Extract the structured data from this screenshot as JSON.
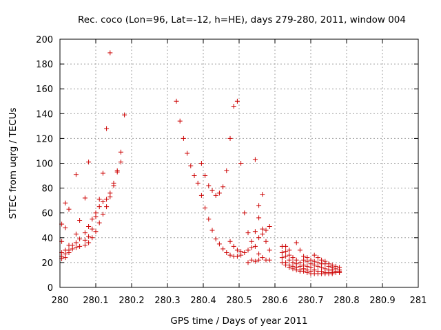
{
  "chart_data": {
    "type": "scatter",
    "title": "Rec. coco (Lon=96, Lat=-12, h=HE), days 279-280, 2011, window 004",
    "xlabel": "GPS time / Days of year 2011",
    "ylabel": "STEC from uqrg / TECUs",
    "xlim": [
      280,
      281
    ],
    "ylim": [
      0,
      200
    ],
    "xticks": [
      280,
      280.1,
      280.2,
      280.3,
      280.4,
      280.5,
      280.6,
      280.7,
      280.8,
      280.9,
      281
    ],
    "xtick_labels": [
      "280",
      "280.1",
      "280.2",
      "280.3",
      "280.4",
      "280.5",
      "280.6",
      "280.7",
      "280.8",
      "280.9",
      "281"
    ],
    "yticks": [
      0,
      20,
      40,
      60,
      80,
      100,
      120,
      140,
      160,
      180,
      200
    ],
    "ytick_labels": [
      "0",
      "20",
      "40",
      "60",
      "80",
      "100",
      "120",
      "140",
      "160",
      "180",
      "200"
    ],
    "grid": true,
    "marker": "+",
    "color": "#cc0000",
    "points": [
      [
        280.005,
        51
      ],
      [
        280.005,
        37
      ],
      [
        280.005,
        28
      ],
      [
        280.005,
        25
      ],
      [
        280.005,
        23
      ],
      [
        280.015,
        68
      ],
      [
        280.015,
        48
      ],
      [
        280.015,
        30
      ],
      [
        280.015,
        27
      ],
      [
        280.015,
        24
      ],
      [
        280.025,
        63
      ],
      [
        280.025,
        34
      ],
      [
        280.025,
        30
      ],
      [
        280.025,
        28
      ],
      [
        280.035,
        34
      ],
      [
        280.035,
        31
      ],
      [
        280.045,
        91
      ],
      [
        280.045,
        43
      ],
      [
        280.045,
        36
      ],
      [
        280.045,
        32
      ],
      [
        280.055,
        54
      ],
      [
        280.055,
        39
      ],
      [
        280.055,
        33
      ],
      [
        280.07,
        72
      ],
      [
        280.07,
        44
      ],
      [
        280.07,
        38
      ],
      [
        280.07,
        34
      ],
      [
        280.08,
        101
      ],
      [
        280.08,
        49
      ],
      [
        280.08,
        41
      ],
      [
        280.08,
        36
      ],
      [
        280.09,
        55
      ],
      [
        280.09,
        47
      ],
      [
        280.09,
        40
      ],
      [
        280.1,
        60
      ],
      [
        280.1,
        57
      ],
      [
        280.1,
        45
      ],
      [
        280.11,
        71
      ],
      [
        280.11,
        65
      ],
      [
        280.11,
        52
      ],
      [
        280.12,
        92
      ],
      [
        280.12,
        69
      ],
      [
        280.12,
        59
      ],
      [
        280.13,
        128
      ],
      [
        280.13,
        71
      ],
      [
        280.13,
        65
      ],
      [
        280.14,
        189
      ],
      [
        280.14,
        76
      ],
      [
        280.14,
        73
      ],
      [
        280.15,
        84
      ],
      [
        280.15,
        82
      ],
      [
        280.16,
        94
      ],
      [
        280.16,
        93
      ],
      [
        280.17,
        109
      ],
      [
        280.17,
        101
      ],
      [
        280.18,
        139
      ],
      [
        280.325,
        150
      ],
      [
        280.335,
        134
      ],
      [
        280.345,
        120
      ],
      [
        280.355,
        108
      ],
      [
        280.365,
        98
      ],
      [
        280.375,
        90
      ],
      [
        280.385,
        84
      ],
      [
        280.395,
        100
      ],
      [
        280.395,
        74
      ],
      [
        280.405,
        90
      ],
      [
        280.405,
        64
      ],
      [
        280.415,
        82
      ],
      [
        280.415,
        55
      ],
      [
        280.425,
        78
      ],
      [
        280.425,
        46
      ],
      [
        280.435,
        74
      ],
      [
        280.435,
        39
      ],
      [
        280.445,
        76
      ],
      [
        280.445,
        35
      ],
      [
        280.455,
        81
      ],
      [
        280.455,
        31
      ],
      [
        280.465,
        94
      ],
      [
        280.465,
        28
      ],
      [
        280.475,
        120
      ],
      [
        280.475,
        37
      ],
      [
        280.475,
        26
      ],
      [
        280.485,
        146
      ],
      [
        280.485,
        33
      ],
      [
        280.485,
        25
      ],
      [
        280.495,
        150
      ],
      [
        280.495,
        30
      ],
      [
        280.495,
        25
      ],
      [
        280.505,
        100
      ],
      [
        280.505,
        29
      ],
      [
        280.505,
        26
      ],
      [
        280.515,
        60
      ],
      [
        280.515,
        28
      ],
      [
        280.525,
        44
      ],
      [
        280.525,
        30
      ],
      [
        280.525,
        20
      ],
      [
        280.535,
        37
      ],
      [
        280.535,
        32
      ],
      [
        280.535,
        22
      ],
      [
        280.545,
        103
      ],
      [
        280.545,
        45
      ],
      [
        280.545,
        33
      ],
      [
        280.545,
        21
      ],
      [
        280.555,
        66
      ],
      [
        280.555,
        56
      ],
      [
        280.555,
        40
      ],
      [
        280.555,
        27
      ],
      [
        280.555,
        22
      ],
      [
        280.565,
        75
      ],
      [
        280.565,
        47
      ],
      [
        280.565,
        43
      ],
      [
        280.565,
        24
      ],
      [
        280.575,
        46
      ],
      [
        280.575,
        37
      ],
      [
        280.575,
        22
      ],
      [
        280.585,
        49
      ],
      [
        280.585,
        30
      ],
      [
        280.585,
        22
      ],
      [
        280.62,
        33
      ],
      [
        280.62,
        28
      ],
      [
        280.62,
        24
      ],
      [
        280.62,
        20
      ],
      [
        280.63,
        33
      ],
      [
        280.63,
        29
      ],
      [
        280.63,
        25
      ],
      [
        280.63,
        20
      ],
      [
        280.63,
        18
      ],
      [
        280.64,
        30
      ],
      [
        280.64,
        26
      ],
      [
        280.64,
        22
      ],
      [
        280.64,
        18
      ],
      [
        280.64,
        16
      ],
      [
        280.65,
        24
      ],
      [
        280.65,
        20
      ],
      [
        280.65,
        17
      ],
      [
        280.65,
        15
      ],
      [
        280.66,
        36
      ],
      [
        280.66,
        22
      ],
      [
        280.66,
        19
      ],
      [
        280.66,
        16
      ],
      [
        280.66,
        14
      ],
      [
        280.67,
        30
      ],
      [
        280.67,
        20
      ],
      [
        280.67,
        17
      ],
      [
        280.67,
        14
      ],
      [
        280.67,
        13
      ],
      [
        280.68,
        25
      ],
      [
        280.68,
        22
      ],
      [
        280.68,
        18
      ],
      [
        280.68,
        15
      ],
      [
        280.68,
        13
      ],
      [
        280.69,
        24
      ],
      [
        280.69,
        21
      ],
      [
        280.69,
        17
      ],
      [
        280.69,
        14
      ],
      [
        280.69,
        12
      ],
      [
        280.7,
        22
      ],
      [
        280.7,
        19
      ],
      [
        280.7,
        16
      ],
      [
        280.7,
        13
      ],
      [
        280.7,
        11
      ],
      [
        280.71,
        26
      ],
      [
        280.71,
        21
      ],
      [
        280.71,
        18
      ],
      [
        280.71,
        14
      ],
      [
        280.71,
        11
      ],
      [
        280.72,
        24
      ],
      [
        280.72,
        20
      ],
      [
        280.72,
        17
      ],
      [
        280.72,
        13
      ],
      [
        280.72,
        11
      ],
      [
        280.73,
        22
      ],
      [
        280.73,
        19
      ],
      [
        280.73,
        16
      ],
      [
        280.73,
        13
      ],
      [
        280.73,
        11
      ],
      [
        280.74,
        21
      ],
      [
        280.74,
        19
      ],
      [
        280.74,
        15
      ],
      [
        280.74,
        12
      ],
      [
        280.74,
        11
      ],
      [
        280.75,
        19
      ],
      [
        280.75,
        17
      ],
      [
        280.75,
        14
      ],
      [
        280.75,
        12
      ],
      [
        280.75,
        11
      ],
      [
        280.76,
        18
      ],
      [
        280.76,
        16
      ],
      [
        280.76,
        14
      ],
      [
        280.76,
        12
      ],
      [
        280.76,
        11
      ],
      [
        280.77,
        17
      ],
      [
        280.77,
        15
      ],
      [
        280.77,
        13
      ],
      [
        280.77,
        12
      ],
      [
        280.78,
        16
      ],
      [
        280.78,
        14
      ],
      [
        280.78,
        13
      ],
      [
        280.78,
        12
      ]
    ]
  }
}
